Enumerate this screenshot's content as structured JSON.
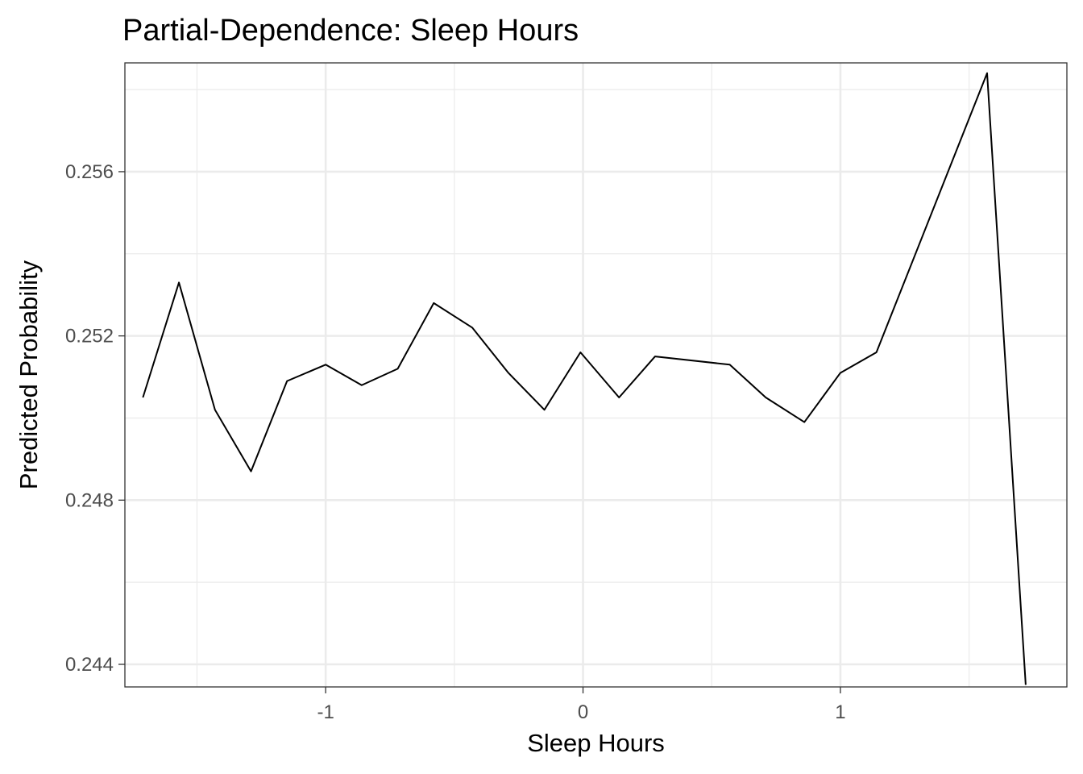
{
  "chart_data": {
    "type": "line",
    "title": "Partial-Dependence: Sleep Hours",
    "xlabel": "Sleep Hours",
    "ylabel": "Predicted Probability",
    "xlim": [
      -1.78,
      1.88
    ],
    "ylim": [
      0.24345,
      0.25865
    ],
    "x_ticks": [
      -1,
      0,
      1
    ],
    "x_tick_labels": [
      "-1",
      "0",
      "1"
    ],
    "x_minor_ticks": [
      -1.5,
      -0.5,
      0.5,
      1.5
    ],
    "y_ticks": [
      0.244,
      0.248,
      0.252,
      0.256
    ],
    "y_tick_labels": [
      "0.244",
      "0.248",
      "0.252",
      "0.256"
    ],
    "y_minor_ticks": [
      0.246,
      0.25,
      0.254,
      0.258
    ],
    "grid": true,
    "line_color": "#000000",
    "grid_color": "#ebebeb",
    "x": [
      -1.71,
      -1.57,
      -1.43,
      -1.29,
      -1.15,
      -1.0,
      -0.86,
      -0.72,
      -0.58,
      -0.43,
      -0.29,
      -0.15,
      -0.01,
      0.14,
      0.28,
      0.57,
      0.71,
      0.86,
      1.0,
      1.14,
      1.57,
      1.72
    ],
    "values": [
      0.2505,
      0.2533,
      0.2502,
      0.2487,
      0.2509,
      0.2513,
      0.2508,
      0.2512,
      0.2528,
      0.2522,
      0.2511,
      0.2502,
      0.2516,
      0.2505,
      0.2515,
      0.2513,
      0.2505,
      0.2499,
      0.2511,
      0.2516,
      0.2584,
      0.2435
    ]
  }
}
